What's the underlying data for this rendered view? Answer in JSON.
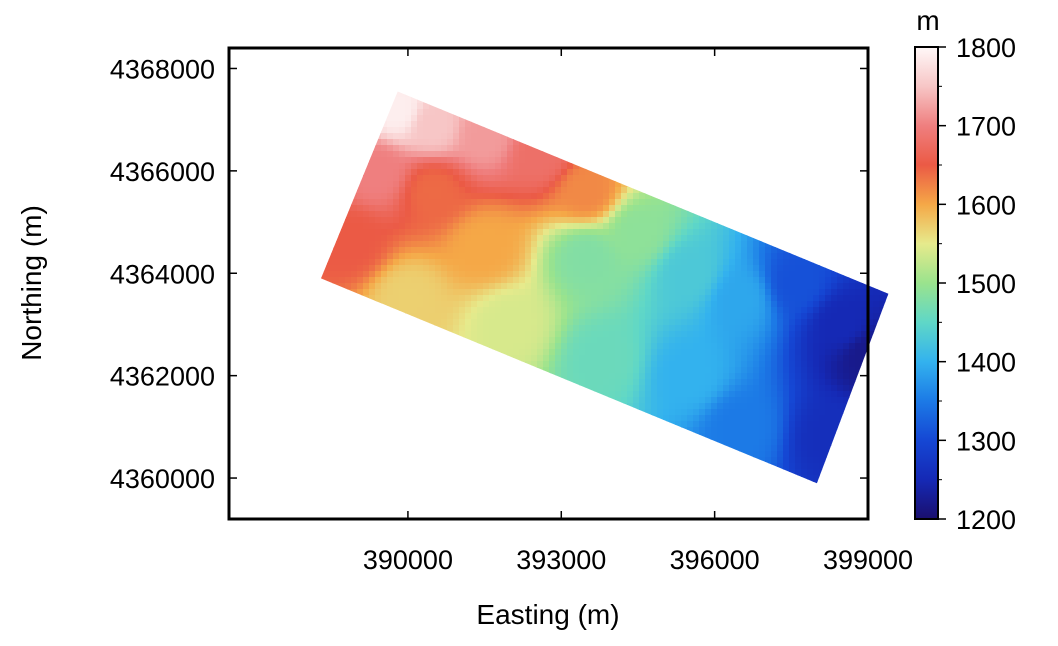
{
  "chart_data": {
    "type": "heatmap",
    "title": "",
    "xlabel": "Easting (m)",
    "ylabel": "Northing (m)",
    "xlim": [
      386500,
      399000
    ],
    "ylim": [
      4359200,
      4368400
    ],
    "xticks": [
      390000,
      393000,
      396000,
      399000
    ],
    "xtick_labels": [
      "390000",
      "393000",
      "396000",
      "399000"
    ],
    "yticks": [
      4360000,
      4362000,
      4364000,
      4366000,
      4368000
    ],
    "ytick_labels": [
      "4360000",
      "4362000",
      "4364000",
      "4366000",
      "4368000"
    ],
    "grid": false,
    "colorbar": {
      "label": "m",
      "range": [
        1200,
        1800
      ],
      "ticks": [
        1200,
        1300,
        1400,
        1500,
        1600,
        1700,
        1800
      ],
      "tick_labels": [
        "1200",
        "1300",
        "1400",
        "1500",
        "1600",
        "1700",
        "1800"
      ],
      "colormap": [
        {
          "value": 1200,
          "color": "#1a0f6e"
        },
        {
          "value": 1250,
          "color": "#1529b5"
        },
        {
          "value": 1300,
          "color": "#1547d4"
        },
        {
          "value": 1350,
          "color": "#1c7ae6"
        },
        {
          "value": 1400,
          "color": "#33b2ee"
        },
        {
          "value": 1450,
          "color": "#5fd7c7"
        },
        {
          "value": 1500,
          "color": "#9ae38d"
        },
        {
          "value": 1550,
          "color": "#e6ea8c"
        },
        {
          "value": 1600,
          "color": "#f5a847"
        },
        {
          "value": 1650,
          "color": "#eb5a45"
        },
        {
          "value": 1700,
          "color": "#ef7f7f"
        },
        {
          "value": 1750,
          "color": "#f7c6c6"
        },
        {
          "value": 1800,
          "color": "#fff8f8"
        }
      ]
    },
    "surveyed_area_corners": [
      {
        "easting": 389800,
        "northing": 4367550
      },
      {
        "easting": 399400,
        "northing": 4363600
      },
      {
        "easting": 398000,
        "northing": 4359900
      },
      {
        "easting": 388300,
        "northing": 4363900
      }
    ],
    "elevation_samples": [
      {
        "easting": 389800,
        "northing": 4367200,
        "value": 1790
      },
      {
        "easting": 390500,
        "northing": 4366900,
        "value": 1750
      },
      {
        "easting": 391500,
        "northing": 4366700,
        "value": 1720
      },
      {
        "easting": 392600,
        "northing": 4366300,
        "value": 1680
      },
      {
        "easting": 389400,
        "northing": 4366000,
        "value": 1700
      },
      {
        "easting": 388900,
        "northing": 4364600,
        "value": 1650
      },
      {
        "easting": 390500,
        "northing": 4365600,
        "value": 1640
      },
      {
        "easting": 393500,
        "northing": 4365600,
        "value": 1620
      },
      {
        "easting": 391500,
        "northing": 4364500,
        "value": 1600
      },
      {
        "easting": 390000,
        "northing": 4363500,
        "value": 1570
      },
      {
        "easting": 392000,
        "northing": 4363000,
        "value": 1540
      },
      {
        "easting": 393500,
        "northing": 4364300,
        "value": 1480
      },
      {
        "easting": 394500,
        "northing": 4364800,
        "value": 1490
      },
      {
        "easting": 393800,
        "northing": 4362300,
        "value": 1460
      },
      {
        "easting": 395500,
        "northing": 4364000,
        "value": 1430
      },
      {
        "easting": 395500,
        "northing": 4362000,
        "value": 1400
      },
      {
        "easting": 396500,
        "northing": 4363500,
        "value": 1390
      },
      {
        "easting": 396500,
        "northing": 4361000,
        "value": 1350
      },
      {
        "easting": 397600,
        "northing": 4363800,
        "value": 1310
      },
      {
        "easting": 398500,
        "northing": 4363000,
        "value": 1250
      },
      {
        "easting": 398300,
        "northing": 4360800,
        "value": 1260
      },
      {
        "easting": 399000,
        "northing": 4362400,
        "value": 1220
      }
    ]
  }
}
